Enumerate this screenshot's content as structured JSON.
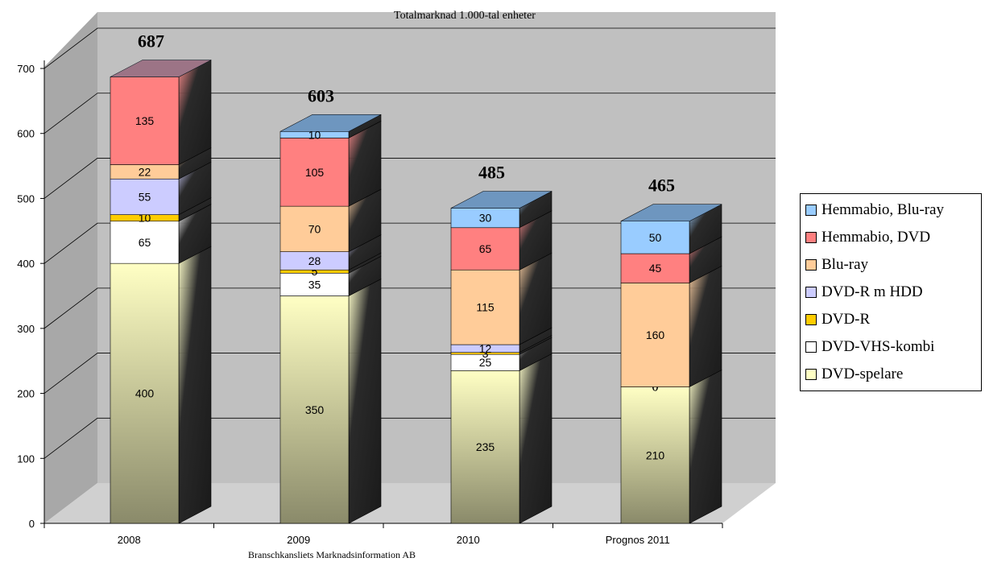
{
  "chart_data": {
    "type": "bar",
    "stacked": true,
    "three_d": true,
    "title": "Totalmarknad 1.000-tal enheter",
    "caption": "Branschkansliets Marknadsinformation AB",
    "categories": [
      "2008",
      "2009",
      "2010",
      "Prognos 2011"
    ],
    "totals": [
      "687",
      "603",
      "485",
      "465"
    ],
    "ylim": [
      0,
      700
    ],
    "yticks": [
      0,
      100,
      200,
      300,
      400,
      500,
      600,
      700
    ],
    "grid": true,
    "legend_position": "right",
    "series": [
      {
        "name": "DVD-spelare",
        "color": "#ffffc4",
        "values": [
          400,
          350,
          235,
          210
        ],
        "labels": [
          "400",
          "350",
          "235",
          "210"
        ]
      },
      {
        "name": "DVD-VHS-kombi",
        "color": "#ffffff",
        "values": [
          65,
          35,
          25,
          0
        ],
        "labels": [
          "65",
          "35",
          "25",
          "0"
        ]
      },
      {
        "name": "DVD-R",
        "color": "#ffcc00",
        "values": [
          10,
          5,
          3,
          0
        ],
        "labels": [
          "10",
          "5",
          "3",
          "0"
        ]
      },
      {
        "name": "DVD-R m HDD",
        "color": "#ccccff",
        "values": [
          55,
          28,
          12,
          0
        ],
        "labels": [
          "55",
          "28",
          "12",
          ""
        ]
      },
      {
        "name": "Blu-ray",
        "color": "#ffcc99",
        "values": [
          22,
          70,
          115,
          160
        ],
        "labels": [
          "22",
          "70",
          "115",
          "160"
        ]
      },
      {
        "name": "Hemmabio, DVD",
        "color": "#ff8080",
        "values": [
          135,
          105,
          65,
          45
        ],
        "labels": [
          "135",
          "105",
          "65",
          "45"
        ]
      },
      {
        "name": "Hemmabio, Blu-ray",
        "color": "#99ccff",
        "values": [
          0,
          10,
          30,
          50
        ],
        "labels": [
          "",
          "10",
          "30",
          "50"
        ]
      }
    ]
  }
}
